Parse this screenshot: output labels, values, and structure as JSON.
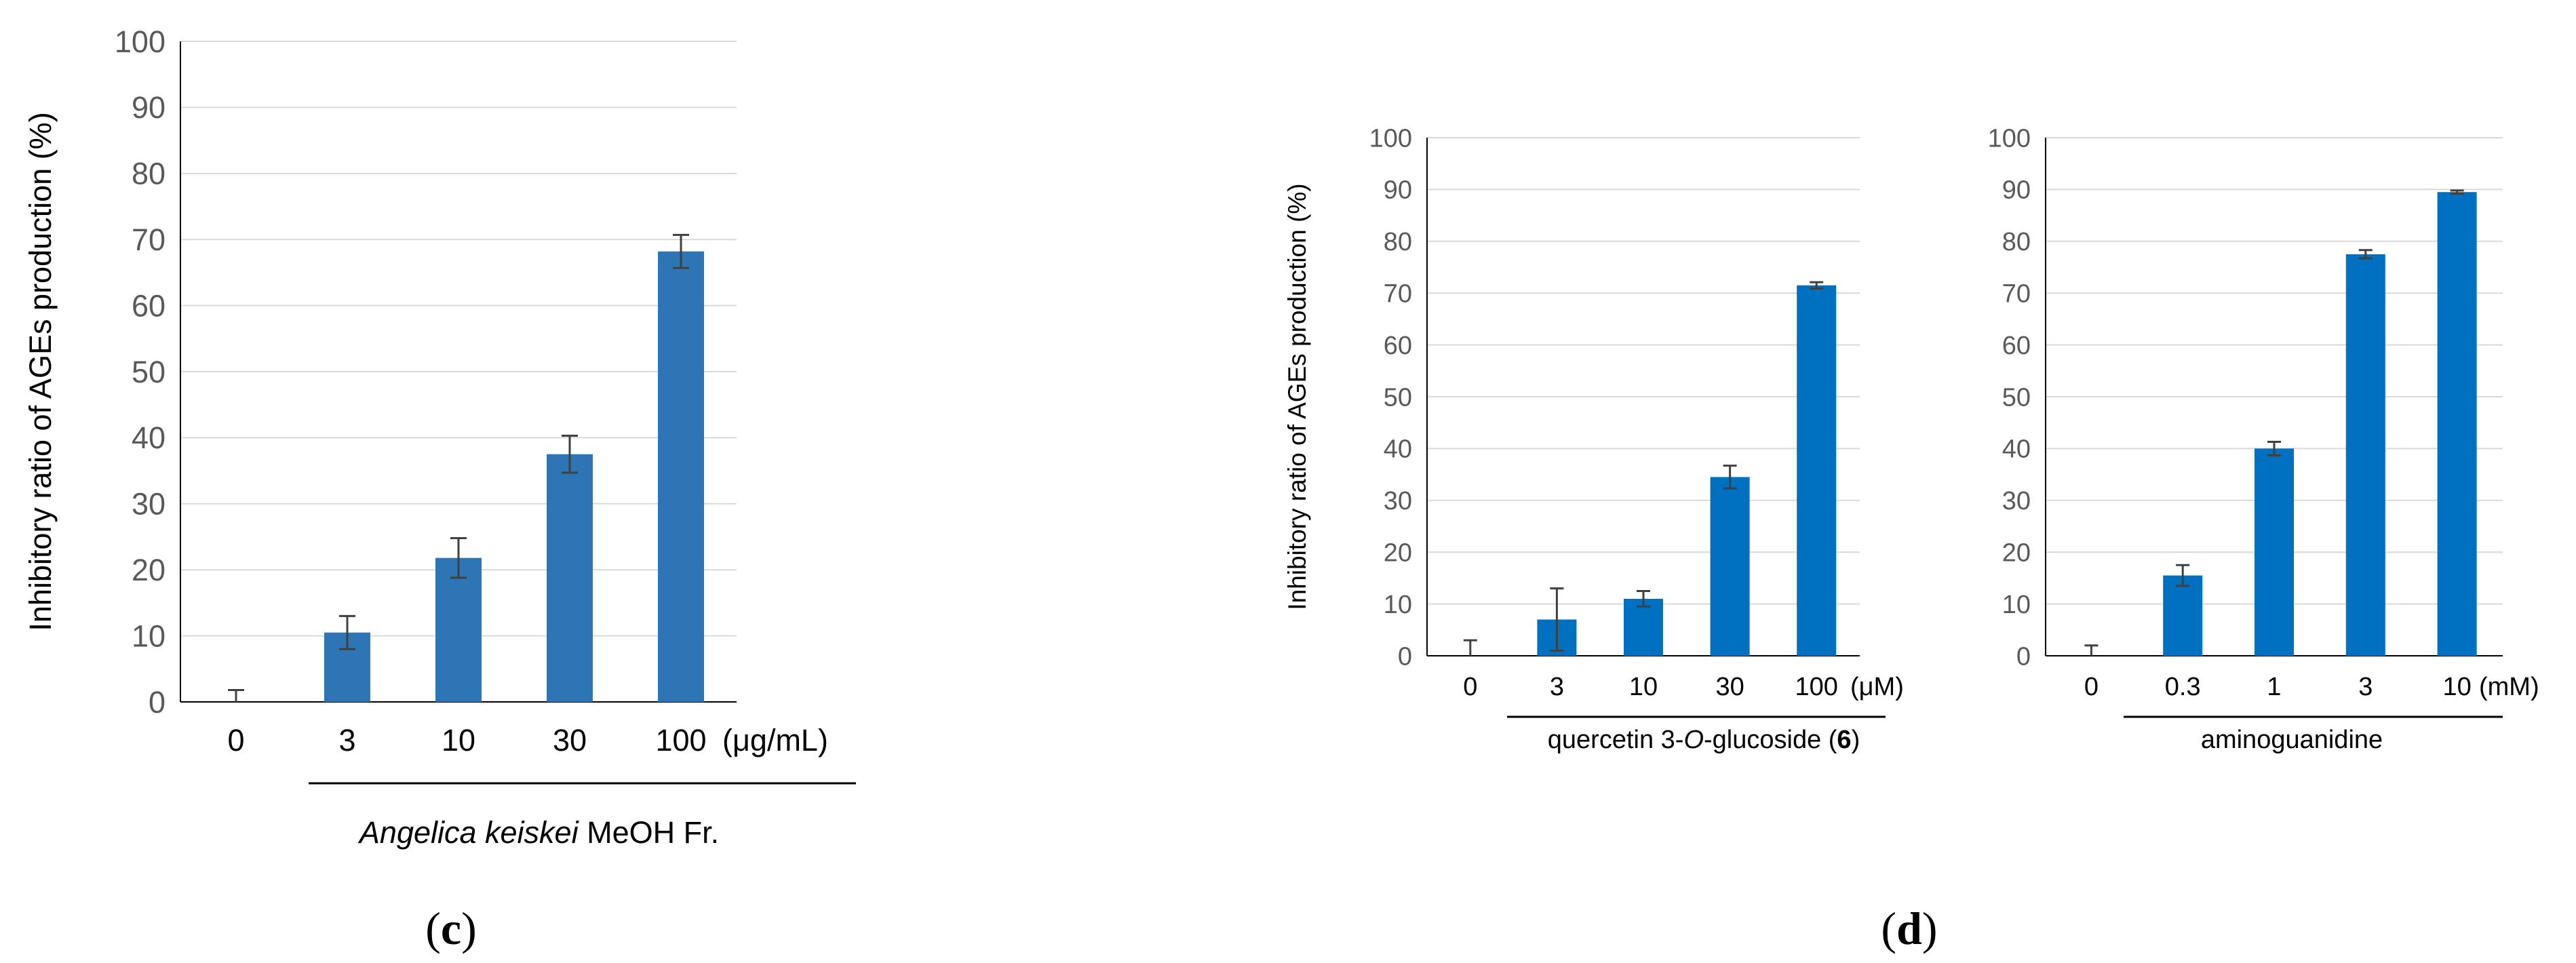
{
  "panels": {
    "c": {
      "letter": "c"
    },
    "d": {
      "letter": "d"
    }
  },
  "chart_data": [
    {
      "type": "bar",
      "panel": "c",
      "categories": [
        "0",
        "3",
        "10",
        "30",
        "100"
      ],
      "unit_label": "(μg/mL)",
      "values": [
        0,
        10.5,
        21.8,
        37.5,
        68.2
      ],
      "errors": [
        1.8,
        2.5,
        3.0,
        2.8,
        2.5
      ],
      "ylabel": "Inhibitory ratio of AGEs production (%)",
      "ylim": [
        0,
        100
      ],
      "yticks": [
        "0",
        "10",
        "20",
        "30",
        "40",
        "50",
        "60",
        "70",
        "80",
        "90",
        "100"
      ],
      "xgroup_label_italic": "Angelica keiskei",
      "xgroup_label_rest": " MeOH Fr.",
      "grid": true,
      "bar_color": "#2e75b6"
    },
    {
      "type": "bar",
      "panel": "d",
      "categories": [
        "0",
        "3",
        "10",
        "30",
        "100"
      ],
      "unit_label": "(μM)",
      "values": [
        0,
        7.0,
        11.0,
        34.5,
        71.5
      ],
      "errors": [
        3.0,
        6.0,
        1.5,
        2.2,
        0.6
      ],
      "ylabel": "Inhibitory ratio of AGEs production (%)",
      "ylim": [
        0,
        100
      ],
      "yticks": [
        "0",
        "10",
        "20",
        "30",
        "40",
        "50",
        "60",
        "70",
        "80",
        "90",
        "100"
      ],
      "xgroup_label_a": "quercetin 3-",
      "xgroup_label_b": "O",
      "xgroup_label_c": "-glucoside (",
      "xgroup_label_d": "6",
      "xgroup_label_e": ")",
      "grid": true,
      "bar_color": "#0070c0"
    },
    {
      "type": "bar",
      "panel": "d",
      "categories": [
        "0",
        "0.3",
        "1",
        "3",
        "10"
      ],
      "unit_label": "(mM)",
      "values": [
        0,
        15.5,
        40.0,
        77.5,
        89.5
      ],
      "errors": [
        2.0,
        2.0,
        1.3,
        0.8,
        0.3
      ],
      "ylabel": "",
      "ylim": [
        0,
        100
      ],
      "yticks": [
        "0",
        "10",
        "20",
        "30",
        "40",
        "50",
        "60",
        "70",
        "80",
        "90",
        "100"
      ],
      "xgroup_label": "aminoguanidine",
      "grid": true,
      "bar_color": "#0070c0"
    }
  ]
}
